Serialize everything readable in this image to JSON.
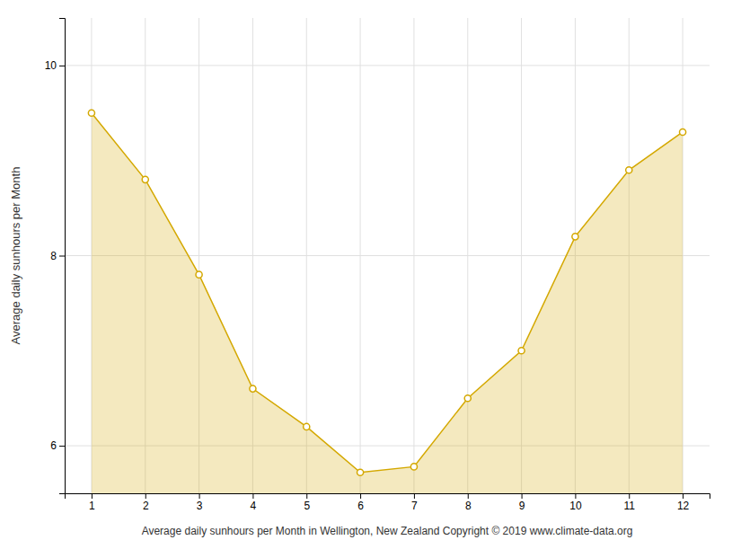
{
  "chart_data": {
    "type": "area",
    "x": [
      1,
      2,
      3,
      4,
      5,
      6,
      7,
      8,
      9,
      10,
      11,
      12
    ],
    "values": [
      9.5,
      8.8,
      7.8,
      6.6,
      6.2,
      5.72,
      5.78,
      6.5,
      7.0,
      8.2,
      8.9,
      9.3
    ],
    "color": "#D4A800",
    "marker": "circle",
    "ylabel": "Average daily sunhours per Month",
    "xlabel": "Average daily sunhours per Month in Wellington, New Zealand Copyright © 2019 www.climate-data.org",
    "xlim": [
      0.5,
      12.5
    ],
    "ylim": [
      5.5,
      10.5
    ],
    "xticks": [
      1,
      2,
      3,
      4,
      5,
      6,
      7,
      8,
      9,
      10,
      11,
      12
    ],
    "yticks": [
      6,
      8,
      10
    ],
    "grid": true
  }
}
